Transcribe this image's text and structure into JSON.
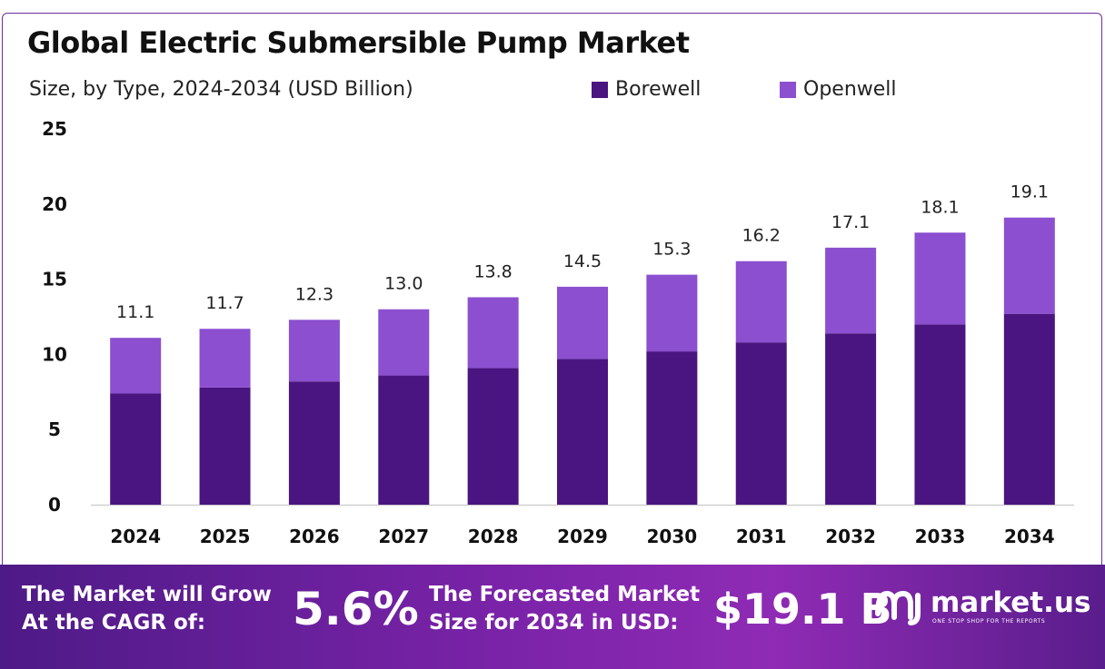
{
  "title": "Global Electric Submersible Pump Market",
  "subtitle": "Size, by Type, 2024-2034 (USD Billion)",
  "colors": {
    "borewell": "#4a1580",
    "openwell": "#8b4fd0",
    "frame": "#6b2f9e",
    "footer_start": "#4e1a87",
    "footer_end": "#8f2bb5"
  },
  "chart_data": {
    "type": "bar",
    "stacked": true,
    "categories": [
      "2024",
      "2025",
      "2026",
      "2027",
      "2028",
      "2029",
      "2030",
      "2031",
      "2032",
      "2033",
      "2034"
    ],
    "series": [
      {
        "name": "Borewell",
        "values": [
          7.4,
          7.8,
          8.2,
          8.6,
          9.1,
          9.7,
          10.2,
          10.8,
          11.4,
          12.0,
          12.7
        ]
      },
      {
        "name": "Openwell",
        "values": [
          3.7,
          3.9,
          4.1,
          4.4,
          4.7,
          4.8,
          5.1,
          5.4,
          5.7,
          6.1,
          6.4
        ]
      }
    ],
    "totals": [
      11.1,
      11.7,
      12.3,
      13.0,
      13.8,
      14.5,
      15.3,
      16.2,
      17.1,
      18.1,
      19.1
    ],
    "total_labels": [
      "11.1",
      "11.7",
      "12.3",
      "13.0",
      "13.8",
      "14.5",
      "15.3",
      "16.2",
      "17.1",
      "18.1",
      "19.1"
    ],
    "yticks": [
      "0",
      "5",
      "10",
      "15",
      "20",
      "25"
    ],
    "ylim": [
      0,
      25
    ],
    "grid": false,
    "legend_position": "top-right"
  },
  "footer": {
    "cagr_label": "The Market will Grow At the CAGR of:",
    "cagr_value": "5.6%",
    "forecast_label": "The Forecasted Market Size for 2034 in USD:",
    "forecast_value": "$19.1 B",
    "brand_name": "market.us",
    "brand_tagline": "ONE STOP SHOP FOR THE REPORTS"
  }
}
